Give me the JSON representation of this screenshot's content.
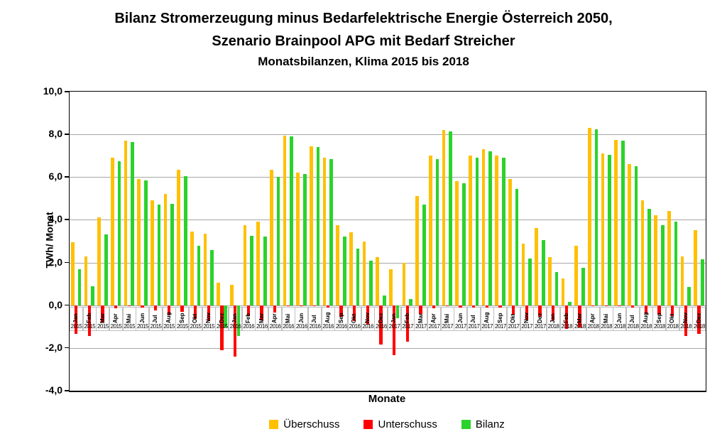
{
  "title": {
    "line1": "Bilanz Stromerzeugung minus Bedarfelektrische Energie Österreich 2050,",
    "line2": "Szenario Brainpool APG mit Bedarf Streicher",
    "line3": "Monatsbilanzen, Klima 2015 bis 2018"
  },
  "colors": {
    "ueberschuss": "#FFC000",
    "unterschuss": "#FF0000",
    "bilanz": "#2BD22B",
    "gridline": "#A6A6A6",
    "frame": "#000000",
    "xcell_border": "#BFBFBF"
  },
  "chart_data": {
    "type": "bar",
    "title": "Bilanz Stromerzeugung minus Bedarfelektrische Energie Österreich 2050, Szenario Brainpool APG mit Bedarf Streicher — Monatsbilanzen, Klima 2015 bis 2018",
    "xlabel": "Monate",
    "ylabel": "TWh/ Monat",
    "ylim": [
      -4.0,
      10.0
    ],
    "ytick_values": [
      10,
      8,
      6,
      4,
      2,
      0,
      -2,
      -4
    ],
    "ytick_labels": [
      "10,0",
      "8,0",
      "6,0",
      "4,0",
      "2,0",
      "0,0",
      "-2,0",
      "-4,0"
    ],
    "grid": true,
    "legend_position": "bottom",
    "month_labels": [
      "Jan",
      "Feb",
      "Mar",
      "Apr",
      "Mai",
      "Jun",
      "Jul",
      "Aug",
      "Sep",
      "Okt",
      "Nov",
      "Dez"
    ],
    "years": [
      "2015",
      "2016",
      "2017",
      "2018"
    ],
    "series": [
      {
        "name": "Überschuss",
        "key": "ueberschuss",
        "color": "#FFC000",
        "values": [
          2.95,
          2.3,
          4.1,
          6.9,
          7.7,
          5.9,
          4.9,
          5.2,
          6.35,
          3.45,
          3.35,
          1.05,
          0.95,
          3.75,
          3.9,
          6.35,
          7.95,
          6.2,
          7.45,
          6.9,
          3.75,
          3.4,
          3.0,
          2.25,
          1.7,
          2.0,
          5.1,
          7.0,
          8.2,
          5.8,
          7.0,
          7.3,
          7.0,
          5.9,
          2.9,
          3.6,
          2.25,
          1.25,
          2.8,
          8.3,
          7.1,
          7.75,
          6.6,
          4.9,
          4.2,
          4.4,
          2.3,
          3.5
        ]
      },
      {
        "name": "Unterschuss",
        "key": "unterschuss",
        "color": "#FF0000",
        "values": [
          -1.35,
          -1.45,
          -0.8,
          -0.15,
          -0.05,
          -0.1,
          -0.25,
          -0.45,
          -0.3,
          -0.65,
          -0.75,
          -2.1,
          -2.4,
          -0.5,
          -0.7,
          -0.35,
          -0.05,
          -0.05,
          -0.05,
          -0.1,
          -0.55,
          -0.75,
          -0.9,
          -1.85,
          -2.35,
          -1.7,
          -0.4,
          -0.15,
          -0.05,
          -0.1,
          -0.1,
          -0.1,
          -0.1,
          -0.45,
          -0.7,
          -0.55,
          -0.7,
          -1.1,
          -1.05,
          -0.05,
          -0.05,
          -0.05,
          -0.1,
          -0.4,
          -0.45,
          -0.5,
          -1.45,
          -1.35
        ]
      },
      {
        "name": "Bilanz",
        "key": "bilanz",
        "color": "#2BD22B",
        "values": [
          1.7,
          0.9,
          3.3,
          6.75,
          7.65,
          5.85,
          4.7,
          4.75,
          6.05,
          2.8,
          2.6,
          -1.05,
          -1.45,
          3.25,
          3.2,
          6.0,
          7.9,
          6.15,
          7.4,
          6.85,
          3.2,
          2.65,
          2.1,
          0.45,
          -0.6,
          0.3,
          4.7,
          6.85,
          8.15,
          5.7,
          6.9,
          7.2,
          6.9,
          5.45,
          2.2,
          3.05,
          1.55,
          0.15,
          1.75,
          8.25,
          7.05,
          7.7,
          6.5,
          4.5,
          3.75,
          3.9,
          0.85,
          2.15
        ]
      }
    ]
  }
}
